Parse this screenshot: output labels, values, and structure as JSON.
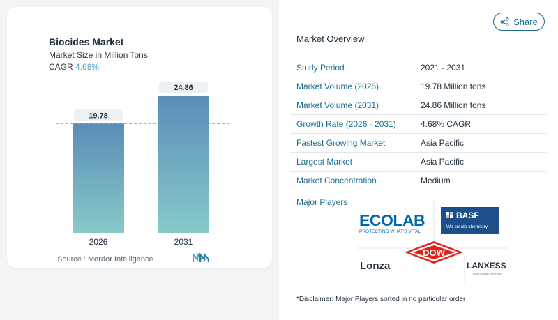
{
  "chart": {
    "title": "Biocides Market",
    "subtitle": "Market Size in Million Tons",
    "cagr_label": "CAGR",
    "cagr_value": "4.68%",
    "source": "Source :  Mordor Intelligence"
  },
  "chart_data": {
    "type": "bar",
    "title": "Biocides Market",
    "subtitle": "Market Size in Million Tons",
    "categories": [
      "2026",
      "2031"
    ],
    "values": [
      19.78,
      24.86
    ],
    "data_labels": [
      "19.78",
      "24.86"
    ],
    "ylim": [
      0,
      26
    ],
    "reference_line": 19.78,
    "colors": {
      "bar_top": "#5b8db7",
      "bar_bottom": "#87cac8"
    }
  },
  "share": {
    "label": "Share",
    "icon": "share-icon"
  },
  "overview": {
    "title": "Market Overview",
    "rows": [
      {
        "key": "Study Period",
        "value": "2021 - 2031"
      },
      {
        "key": "Market Volume (2026)",
        "value": "19.78 Million tons"
      },
      {
        "key": "Market Volume (2031)",
        "value": "24.86 Million tons"
      },
      {
        "key": "Growth Rate (2026 - 2031)",
        "value": "4.68% CAGR"
      },
      {
        "key": "Fastest Growing Market",
        "value": "Asia Pacific"
      },
      {
        "key": "Largest Market",
        "value": "Asia Pacific"
      },
      {
        "key": "Market Concentration",
        "value": "Medium"
      }
    ]
  },
  "players": {
    "title": "Major Players",
    "ecolab": {
      "name": "ECOLAB",
      "tagline": "PROTECTING WHAT'S VITAL"
    },
    "basf": {
      "name": "BASF",
      "tagline": "We create chemistry"
    },
    "lonza": {
      "name": "Lonza"
    },
    "dow": {
      "name": "DOW"
    },
    "lanxess": {
      "name": "LANXESS",
      "tagline": "Energizing Chemistry"
    }
  },
  "disclaimer": "*Disclaimer: Major Players sorted in no particular order",
  "colors": {
    "accent": "#1b6e8f",
    "cagr": "#5aa6c0",
    "dow_red": "#e2231a",
    "ecolab_blue": "#0067b1",
    "basf_blue": "#1c4f8a"
  }
}
